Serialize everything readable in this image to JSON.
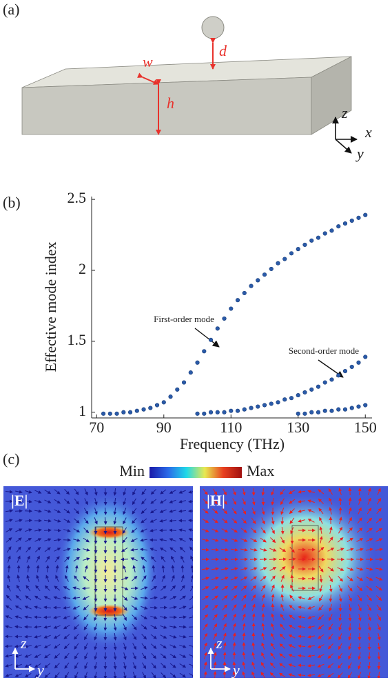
{
  "panel_labels": [
    "(a)",
    "(b)",
    "(c)"
  ],
  "schematic": {
    "dimension_labels": [
      "w",
      "d",
      "h"
    ],
    "axis_labels": [
      "z",
      "x",
      "y"
    ]
  },
  "chart_data": {
    "type": "scatter",
    "x_label": "Frequency (THz)",
    "y_label": "Effective mode index",
    "xlim": [
      68.5,
      152
    ],
    "ylim": [
      0.96,
      2.52
    ],
    "xticks": [
      70,
      90,
      110,
      130,
      150
    ],
    "yticks": [
      1,
      1.5,
      2,
      2.5
    ],
    "series": [
      {
        "color": "#2a5aa8",
        "x": [
          72,
          74,
          76,
          78,
          80,
          82,
          84,
          86,
          88,
          90,
          92,
          94,
          96,
          98,
          100,
          102,
          104,
          106,
          108,
          110,
          112,
          114,
          116,
          118,
          120,
          122,
          124,
          126,
          128,
          130,
          132,
          134,
          136,
          138,
          140,
          142,
          144,
          146,
          148,
          150
        ],
        "values": [
          0.99,
          0.99,
          0.99,
          1.0,
          1.0,
          1.01,
          1.02,
          1.03,
          1.05,
          1.07,
          1.11,
          1.16,
          1.21,
          1.28,
          1.35,
          1.43,
          1.51,
          1.59,
          1.66,
          1.73,
          1.79,
          1.84,
          1.89,
          1.93,
          1.97,
          2.01,
          2.05,
          2.08,
          2.12,
          2.15,
          2.18,
          2.21,
          2.23,
          2.26,
          2.28,
          2.31,
          2.33,
          2.35,
          2.37,
          2.39
        ]
      },
      {
        "color": "#2a5aa8",
        "x": [
          100,
          102,
          104,
          106,
          108,
          110,
          112,
          114,
          116,
          118,
          120,
          122,
          124,
          126,
          128,
          130,
          132,
          134,
          136,
          138,
          140,
          142,
          144,
          146,
          148,
          150
        ],
        "values": [
          0.99,
          0.99,
          1.0,
          1.0,
          1.0,
          1.01,
          1.01,
          1.02,
          1.03,
          1.04,
          1.05,
          1.06,
          1.07,
          1.09,
          1.1,
          1.12,
          1.14,
          1.16,
          1.18,
          1.21,
          1.23,
          1.26,
          1.29,
          1.32,
          1.35,
          1.39
        ]
      },
      {
        "color": "#2a5aa8",
        "x": [
          130,
          132,
          134,
          136,
          138,
          140,
          142,
          144,
          146,
          148,
          150
        ],
        "values": [
          0.99,
          0.99,
          1.0,
          1.0,
          1.01,
          1.01,
          1.02,
          1.02,
          1.03,
          1.04,
          1.05
        ]
      }
    ],
    "annotations": [
      "First-order mode",
      "Second-order mode"
    ]
  },
  "field_maps": {
    "colorbar": {
      "min_label": "Min",
      "max_label": "Max"
    },
    "panels": [
      {
        "title": "|E|",
        "axis_labels": [
          "z",
          "y"
        ]
      },
      {
        "title": "|H|",
        "axis_labels": [
          "z",
          "y"
        ]
      }
    ]
  }
}
